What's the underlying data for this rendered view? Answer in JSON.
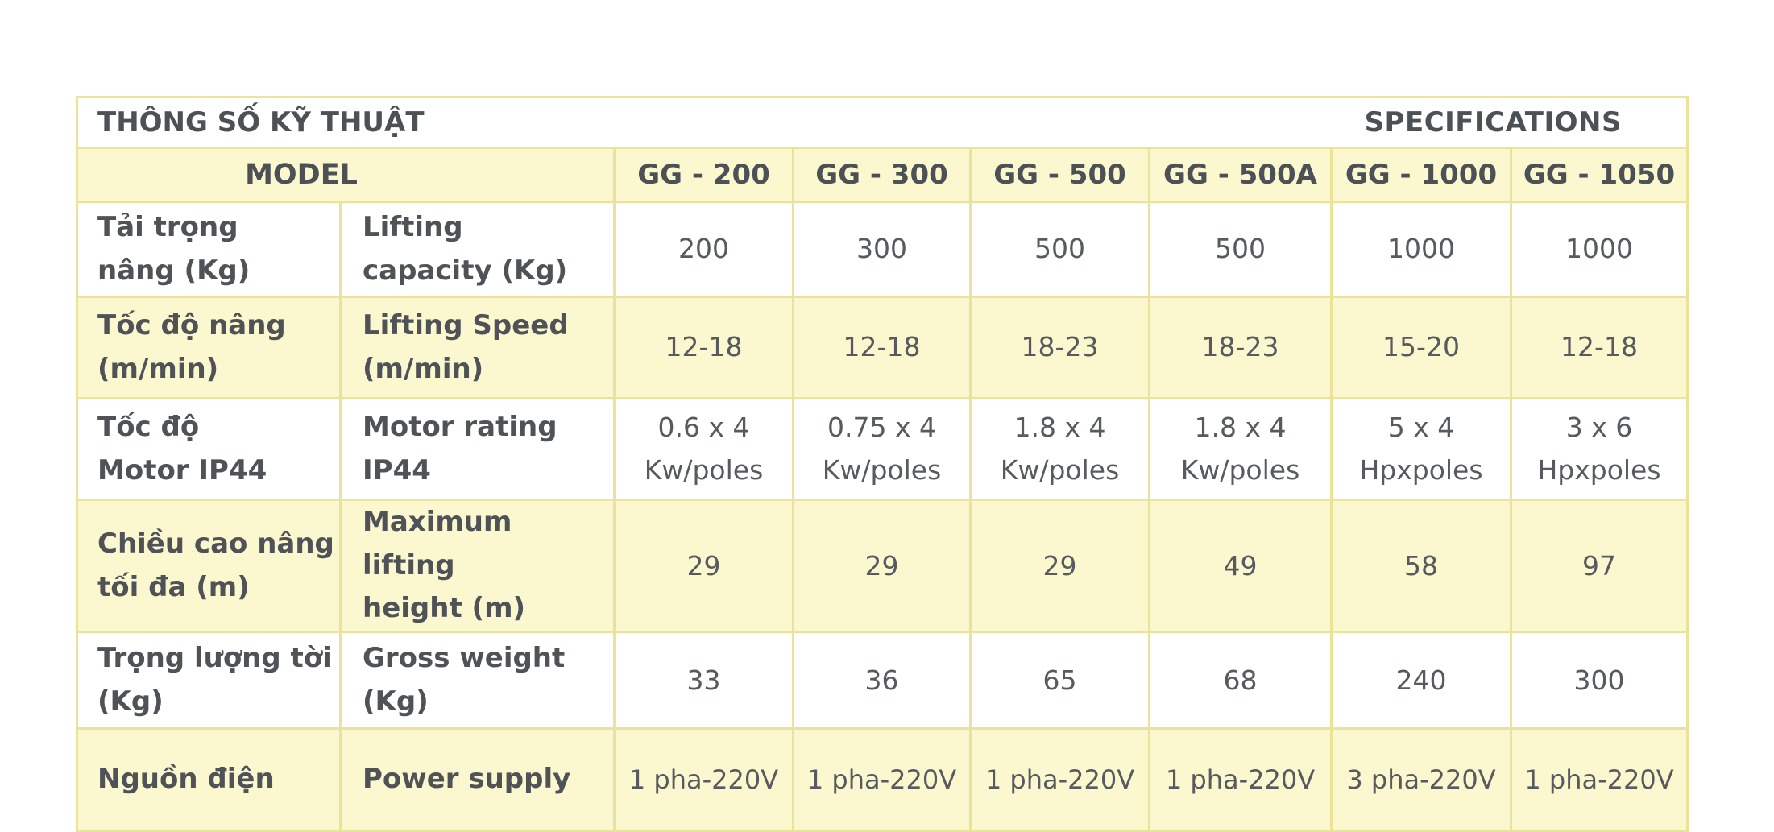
{
  "title": {
    "vietnamese": "THÔNG SỐ KỸ THUẬT",
    "english": "SPECIFICATIONS"
  },
  "header": {
    "model_label": "MODEL",
    "models": [
      "GG - 200",
      "GG - 300",
      "GG - 500",
      "GG - 500A",
      "GG - 1000",
      "GG - 1050"
    ]
  },
  "rows": [
    {
      "label_vn_line1": "Tải trọng",
      "label_vn_line2": "nâng (Kg)",
      "label_en_line1": "Lifting",
      "label_en_line2": "capacity (Kg)",
      "values": [
        "200",
        "300",
        "500",
        "500",
        "1000",
        "1000"
      ]
    },
    {
      "label_vn_line1": "Tốc độ nâng",
      "label_vn_line2": "(m/min)",
      "label_en_line1": "Lifting Speed",
      "label_en_line2": "(m/min)",
      "values": [
        "12-18",
        "12-18",
        "18-23",
        "18-23",
        "15-20",
        "12-18"
      ]
    },
    {
      "label_vn_line1": "Tốc độ",
      "label_vn_line2": "Motor IP44",
      "label_en_line1": "Motor rating",
      "label_en_line2": "IP44",
      "values_line1": [
        "0.6 x 4",
        "0.75 x 4",
        "1.8 x 4",
        "1.8 x 4",
        "5 x 4",
        "3 x 6"
      ],
      "values_line2": [
        "Kw/poles",
        "Kw/poles",
        "Kw/poles",
        "Kw/poles",
        "Hpxpoles",
        "Hpxpoles"
      ]
    },
    {
      "label_vn_line1": "Chiều cao nâng",
      "label_vn_line2": "tối đa (m)",
      "label_en_line1": "Maximum lifting",
      "label_en_line2": "height (m)",
      "values": [
        "29",
        "29",
        "29",
        "49",
        "58",
        "97"
      ]
    },
    {
      "label_vn_line1": "Trọng lượng tời",
      "label_vn_line2": "(Kg)",
      "label_en_line1": "Gross weight",
      "label_en_line2": "(Kg)",
      "values": [
        "33",
        "36",
        "65",
        "68",
        "240",
        "300"
      ]
    },
    {
      "label_vn_line1": "Nguồn điện",
      "label_en_line1": "Power supply",
      "values": [
        "1 pha-220V",
        "1 pha-220V",
        "1 pha-220V",
        "1 pha-220V",
        "3 pha-220V",
        "1 pha-220V"
      ]
    }
  ],
  "colors": {
    "border": "#ece39a",
    "highlight_fill": "#fbf7cf",
    "text": "#4c5155"
  }
}
